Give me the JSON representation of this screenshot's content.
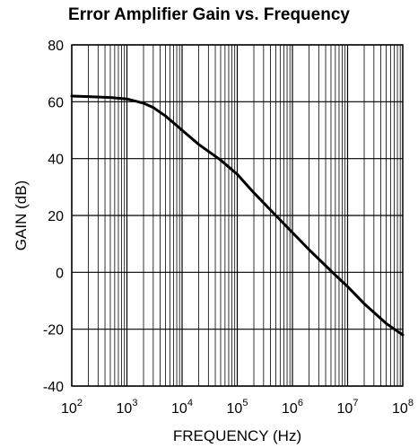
{
  "chart_data": {
    "type": "line",
    "title": "Error Amplifier Gain vs. Frequency",
    "xlabel": "FREQUENCY (Hz)",
    "ylabel": "GAIN (dB)",
    "x_scale": "log",
    "xlim": [
      100,
      100000000
    ],
    "ylim": [
      -40,
      80
    ],
    "grid": true,
    "x_ticks": [
      {
        "base": "10",
        "exp": "2"
      },
      {
        "base": "10",
        "exp": "3"
      },
      {
        "base": "10",
        "exp": "4"
      },
      {
        "base": "10",
        "exp": "5"
      },
      {
        "base": "10",
        "exp": "6"
      },
      {
        "base": "10",
        "exp": "7"
      },
      {
        "base": "10",
        "exp": "8"
      }
    ],
    "y_ticks": [
      "-40",
      "-20",
      "0",
      "20",
      "40",
      "60",
      "80"
    ],
    "series": [
      {
        "x": [
          100,
          200,
          500,
          1000,
          2000,
          3000,
          5000,
          10000,
          20000,
          50000,
          100000,
          200000,
          500000,
          1000000,
          2000000,
          5000000,
          10000000,
          20000000,
          50000000,
          100000000
        ],
        "y": [
          62,
          61.8,
          61.5,
          61,
          59.5,
          58,
          55,
          50,
          45,
          39.5,
          34.5,
          28,
          20,
          14,
          8,
          0.5,
          -5,
          -11,
          -18,
          -22
        ]
      }
    ],
    "colors": {
      "line": "#000000",
      "grid": "#000000",
      "background": "#ffffff"
    }
  }
}
